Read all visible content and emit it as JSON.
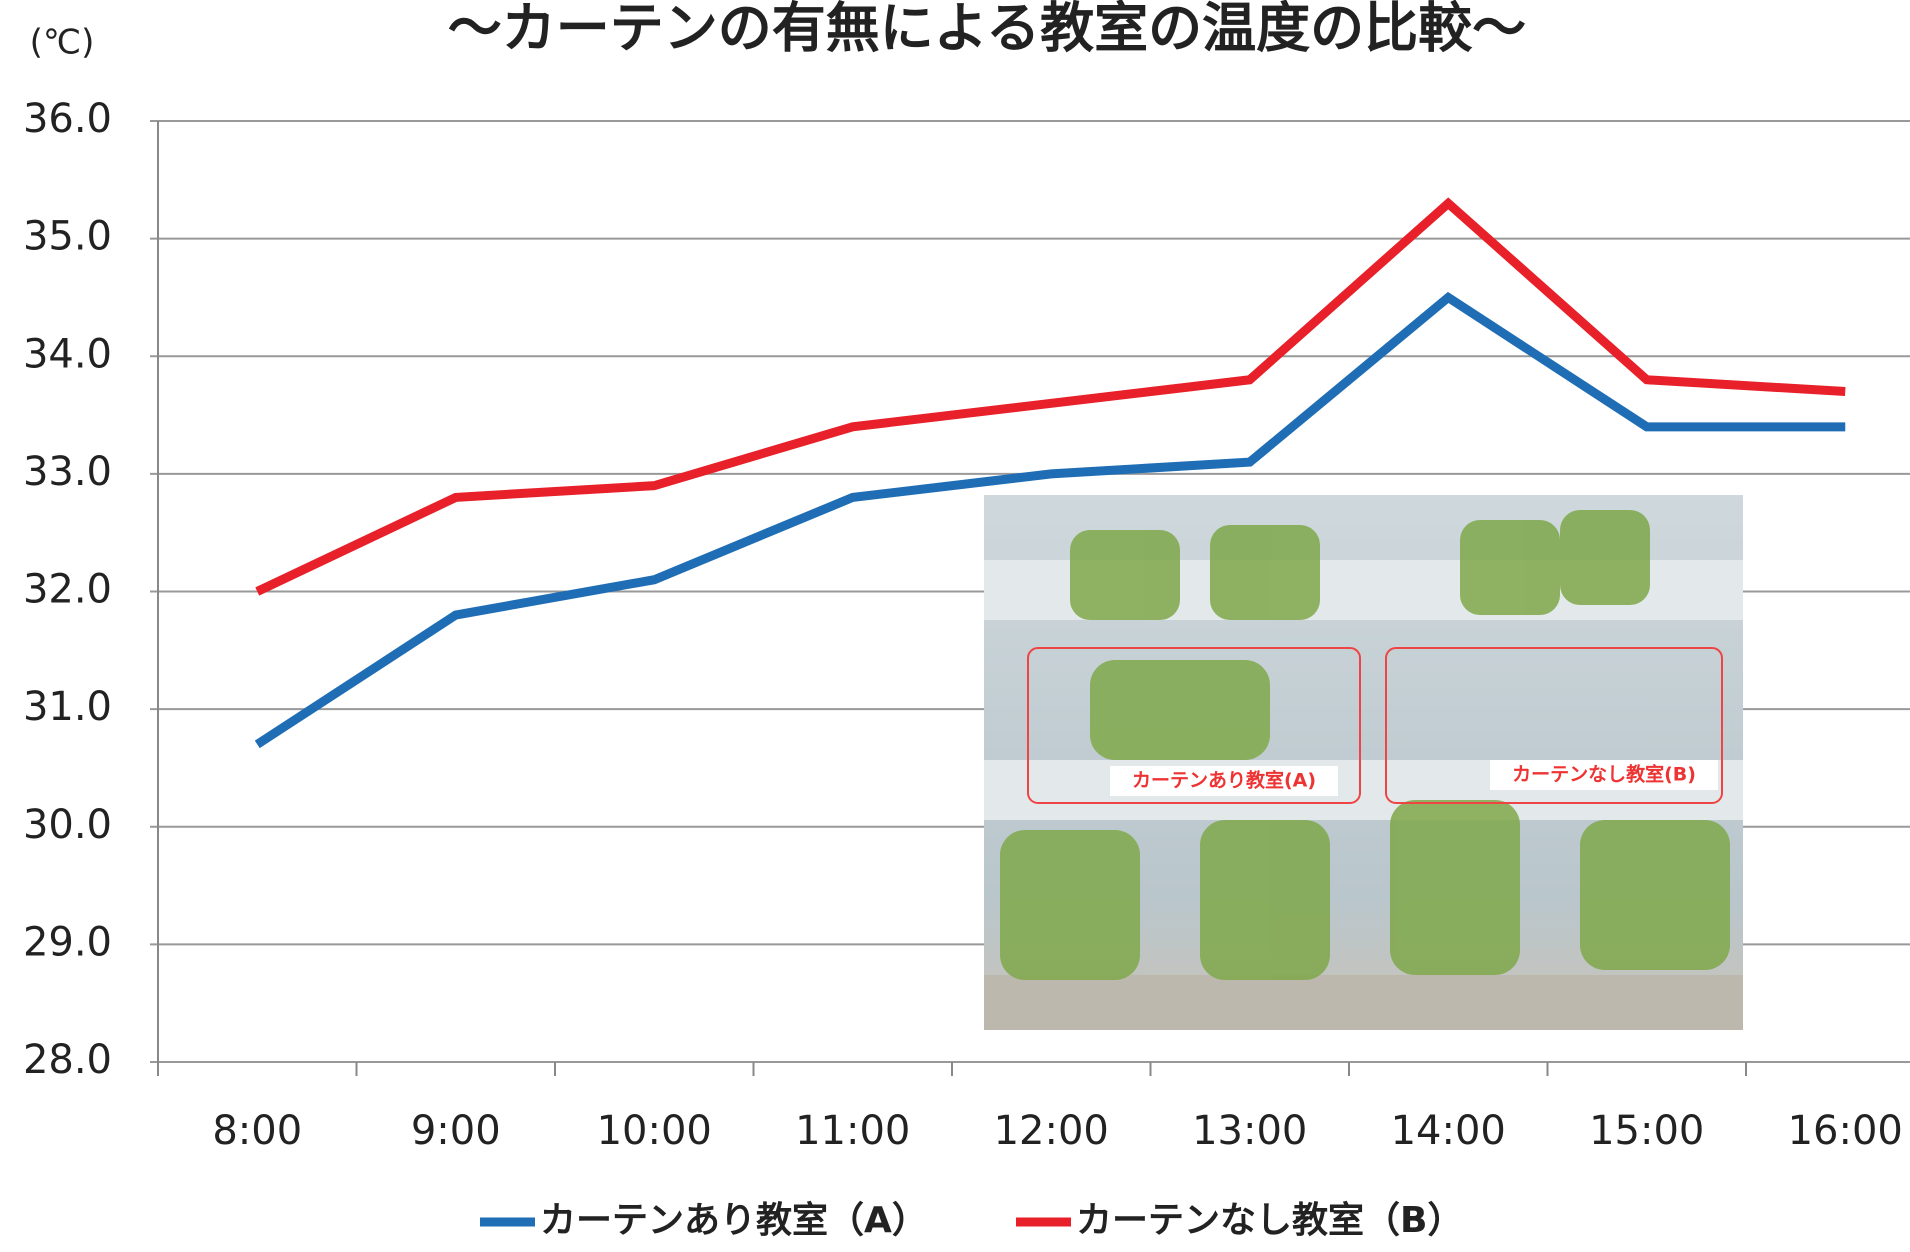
{
  "chart_data": {
    "type": "line",
    "title": "〜カーテンの有無による教室の温度の比較〜",
    "y_unit": "(℃)",
    "categories": [
      "8:00",
      "9:00",
      "10:00",
      "11:00",
      "12:00",
      "13:00",
      "14:00",
      "15:00",
      "16:00"
    ],
    "series": [
      {
        "name": "カーテンあり教室（A）",
        "color": "#1f6db5",
        "values": [
          30.7,
          31.8,
          32.1,
          32.8,
          33.0,
          33.1,
          34.5,
          33.4,
          33.4
        ]
      },
      {
        "name": "カーテンなし教室（B）",
        "color": "#e8202a",
        "values": [
          32.0,
          32.8,
          32.9,
          33.4,
          33.6,
          33.8,
          35.3,
          33.8,
          33.7
        ]
      }
    ],
    "ylim": [
      28,
      36
    ],
    "yticks": [
      {
        "value": 28,
        "label": "28.0"
      },
      {
        "value": 29,
        "label": "29.0"
      },
      {
        "value": 30,
        "label": "30.0"
      },
      {
        "value": 31,
        "label": "31.0"
      },
      {
        "value": 32,
        "label": "32.0"
      },
      {
        "value": 33,
        "label": "33.0"
      },
      {
        "value": 34,
        "label": "34.0"
      },
      {
        "value": 35,
        "label": "35.0"
      },
      {
        "value": 36,
        "label": "36.0"
      }
    ],
    "grid": true,
    "photo_labels": [
      "カーテンあり教室(A)",
      "カーテンなし教室(B)"
    ]
  }
}
